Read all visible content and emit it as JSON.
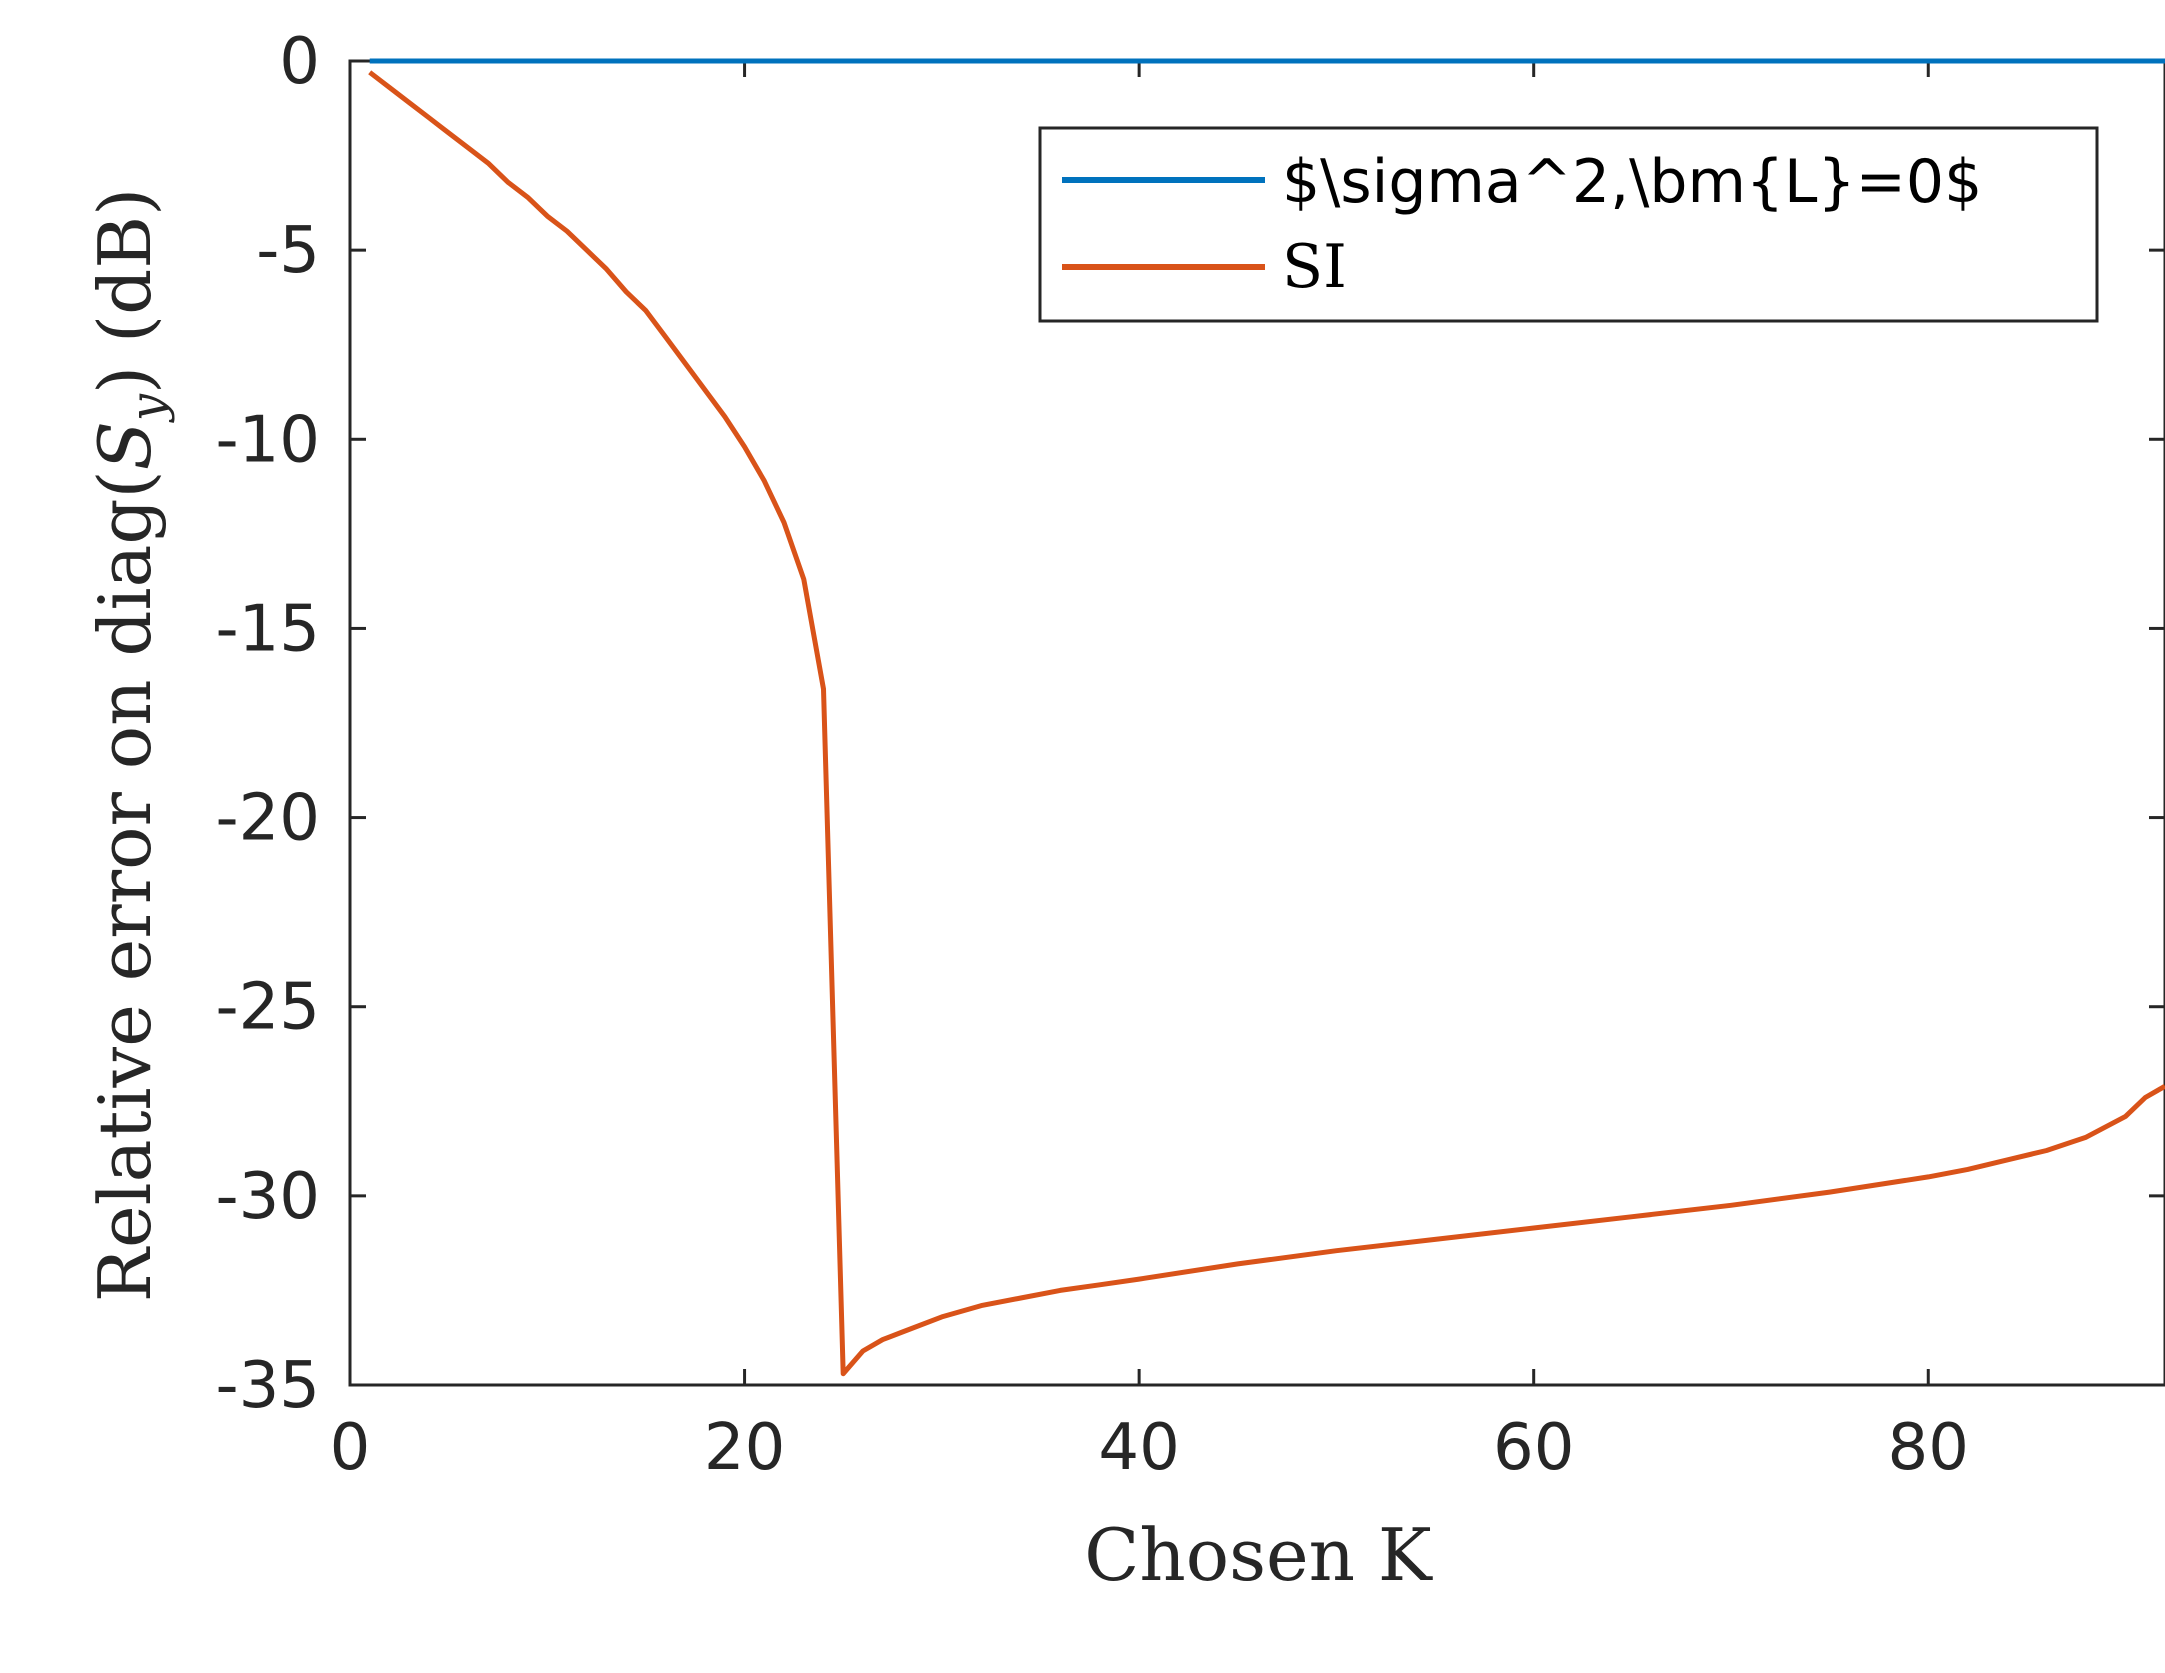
{
  "chart_data": {
    "type": "line",
    "title": "",
    "xlabel": "Chosen K",
    "ylabel": "Relative error on diag(S_y) (dB)",
    "ylabel_parts": {
      "prefix": "Relative error on diag(",
      "symbol": "S",
      "subscript": "y",
      "suffix": ") (dB)"
    },
    "xlim": [
      0,
      92
    ],
    "ylim": [
      -35,
      0
    ],
    "xticks": [
      0,
      20,
      40,
      60,
      80
    ],
    "yticks": [
      0,
      -5,
      -10,
      -15,
      -20,
      -25,
      -30,
      -35
    ],
    "xtick_labels": [
      "0",
      "20",
      "40",
      "60",
      "80"
    ],
    "ytick_labels": [
      "0",
      "-5",
      "-10",
      "-15",
      "-20",
      "-25",
      "-30",
      "-35"
    ],
    "grid": false,
    "legend_position": "top-right",
    "series": [
      {
        "name": "$\\sigma^2,\\bm{L}=0$",
        "color": "#0072bd",
        "x": [
          1,
          92
        ],
        "y": [
          0,
          0
        ]
      },
      {
        "name": "SI",
        "color": "#d95319",
        "x": [
          1,
          2,
          3,
          4,
          5,
          6,
          7,
          8,
          9,
          10,
          11,
          12,
          13,
          14,
          15,
          16,
          17,
          18,
          19,
          20,
          21,
          22,
          23,
          24,
          25,
          26,
          27,
          28,
          30,
          32,
          34,
          36,
          38,
          40,
          45,
          50,
          55,
          60,
          65,
          70,
          75,
          80,
          82,
          84,
          86,
          88,
          90,
          91,
          92
        ],
        "y": [
          -0.3,
          -0.7,
          -1.1,
          -1.5,
          -1.9,
          -2.3,
          -2.7,
          -3.2,
          -3.6,
          -4.1,
          -4.5,
          -5.0,
          -5.5,
          -6.1,
          -6.6,
          -7.3,
          -8.0,
          -8.7,
          -9.4,
          -10.2,
          -11.1,
          -12.2,
          -13.7,
          -16.6,
          -34.7,
          -34.1,
          -33.8,
          -33.6,
          -33.2,
          -32.9,
          -32.7,
          -32.5,
          -32.35,
          -32.2,
          -31.8,
          -31.45,
          -31.15,
          -30.85,
          -30.55,
          -30.25,
          -29.9,
          -29.5,
          -29.3,
          -29.05,
          -28.8,
          -28.45,
          -27.9,
          -27.4,
          -27.1
        ]
      }
    ]
  }
}
